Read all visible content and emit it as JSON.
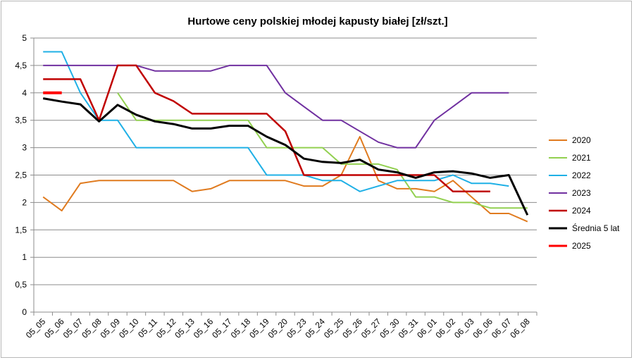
{
  "chart_data": {
    "type": "line",
    "title": "Hurtowe ceny polskiej młodej kapusty białej [zł/szt.]",
    "xlabel": "",
    "ylabel": "",
    "ylim": [
      0,
      5
    ],
    "yticks": [
      "0",
      "0,5",
      "1",
      "1,5",
      "2",
      "2,5",
      "3",
      "3,5",
      "4",
      "4,5",
      "5"
    ],
    "grid": true,
    "legend_position": "right",
    "categories": [
      "05_05",
      "05_06",
      "05_07",
      "05_08",
      "05_09",
      "05_10",
      "05_11",
      "05_12",
      "05_13",
      "05_16",
      "05_17",
      "05_18",
      "05_19",
      "05_20",
      "05_23",
      "05_24",
      "05_25",
      "05_26",
      "05_27",
      "05_30",
      "05_31",
      "06_01",
      "06_02",
      "06_03",
      "06_06",
      "06_07",
      "06_08"
    ],
    "series": [
      {
        "name": "2020",
        "color": "#e07b1f",
        "width": 2,
        "values": [
          2.1,
          1.85,
          2.35,
          2.4,
          2.4,
          2.4,
          2.4,
          2.4,
          2.2,
          2.25,
          2.4,
          2.4,
          2.4,
          2.4,
          2.3,
          2.3,
          2.5,
          3.2,
          2.4,
          2.25,
          2.25,
          2.2,
          2.4,
          2.1,
          1.8,
          1.8,
          1.65
        ]
      },
      {
        "name": "2021",
        "color": "#92d050",
        "width": 2,
        "values": [
          null,
          null,
          null,
          null,
          4.0,
          3.5,
          3.5,
          3.5,
          3.5,
          3.5,
          3.5,
          3.5,
          3.0,
          3.0,
          3.0,
          3.0,
          2.7,
          2.7,
          2.7,
          2.6,
          2.1,
          2.1,
          2.0,
          2.0,
          1.9,
          1.9,
          1.9
        ]
      },
      {
        "name": "2022",
        "color": "#1fb0e6",
        "width": 2,
        "values": [
          4.75,
          4.75,
          4.0,
          3.5,
          3.5,
          3.0,
          3.0,
          3.0,
          3.0,
          3.0,
          3.0,
          3.0,
          2.5,
          2.5,
          2.5,
          2.4,
          2.4,
          2.2,
          2.3,
          2.4,
          2.4,
          2.4,
          2.5,
          2.35,
          2.35,
          2.3,
          null
        ]
      },
      {
        "name": "2023",
        "color": "#7030a0",
        "width": 2,
        "values": [
          4.5,
          4.5,
          4.5,
          4.5,
          4.5,
          4.5,
          4.4,
          4.4,
          4.4,
          4.4,
          4.5,
          4.5,
          4.5,
          4.0,
          3.75,
          3.5,
          3.5,
          3.3,
          3.1,
          3.0,
          3.0,
          3.5,
          3.75,
          4.0,
          4.0,
          4.0,
          null
        ]
      },
      {
        "name": "2024",
        "color": "#c00000",
        "width": 2.5,
        "values": [
          4.25,
          4.25,
          4.25,
          3.5,
          4.5,
          4.5,
          4.0,
          3.85,
          3.62,
          3.62,
          3.62,
          3.62,
          3.62,
          3.3,
          2.5,
          2.5,
          2.5,
          2.5,
          2.5,
          2.5,
          2.5,
          2.5,
          2.2,
          2.2,
          2.2,
          null,
          null
        ]
      },
      {
        "name": "Średnia 5 lat",
        "color": "#000000",
        "width": 3,
        "values": [
          3.9,
          3.84,
          3.79,
          3.48,
          3.78,
          3.6,
          3.48,
          3.43,
          3.35,
          3.35,
          3.4,
          3.4,
          3.2,
          3.05,
          2.8,
          2.74,
          2.72,
          2.78,
          2.6,
          2.55,
          2.45,
          2.55,
          2.57,
          2.53,
          2.45,
          2.5,
          1.77
        ]
      },
      {
        "name": "2025",
        "color": "#ff0000",
        "width": 4,
        "values": [
          4.0,
          4.0,
          null,
          null,
          null,
          null,
          null,
          null,
          null,
          null,
          null,
          null,
          null,
          null,
          null,
          null,
          null,
          null,
          null,
          null,
          null,
          null,
          null,
          null,
          null,
          null,
          null
        ]
      }
    ]
  }
}
